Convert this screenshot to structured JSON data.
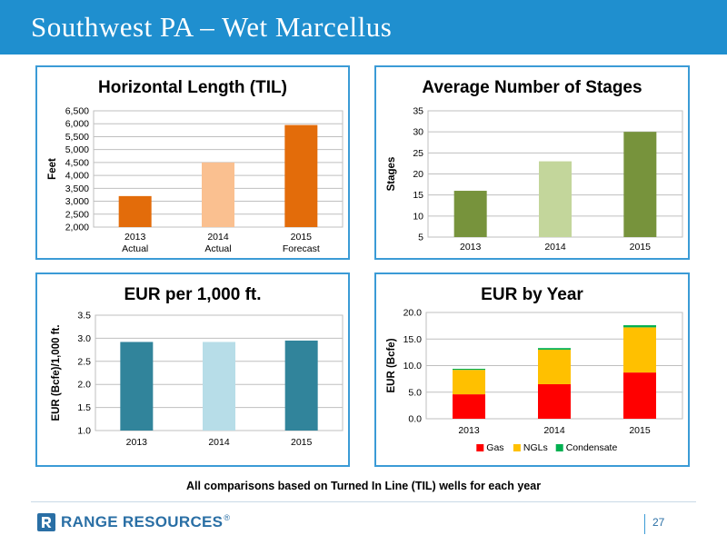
{
  "header": {
    "title": "Southwest PA – Wet Marcellus"
  },
  "footnote": "All comparisons based on Turned In Line (TIL) wells for each year",
  "footer": {
    "brand": "RANGE RESOURCES",
    "brand_mark": "®",
    "page_number": "27"
  },
  "chart_data": [
    {
      "id": "til",
      "type": "bar",
      "title": "Horizontal Length (TIL)",
      "ylabel": "Feet",
      "categories": [
        "2013",
        "2014",
        "2015"
      ],
      "category_sublabels": [
        "Actual",
        "Actual",
        "Forecast"
      ],
      "values": [
        3200,
        4500,
        5950
      ],
      "colors": [
        "#e36c0a",
        "#fac090",
        "#e36c0a"
      ],
      "ylim": [
        2000,
        6500
      ],
      "yticks": [
        2000,
        2500,
        3000,
        3500,
        4000,
        4500,
        5000,
        5500,
        6000,
        6500
      ],
      "tick_format": "thousands",
      "grid": true
    },
    {
      "id": "stages",
      "type": "bar",
      "title": "Average Number of Stages",
      "ylabel": "Stages",
      "categories": [
        "2013",
        "2014",
        "2015"
      ],
      "values": [
        16,
        23,
        30
      ],
      "colors": [
        "#77933c",
        "#c3d69b",
        "#77933c"
      ],
      "ylim": [
        5,
        35
      ],
      "yticks": [
        5,
        10,
        15,
        20,
        25,
        30,
        35
      ],
      "tick_format": "int",
      "grid": true
    },
    {
      "id": "eur1000",
      "type": "bar",
      "title": "EUR per 1,000 ft.",
      "ylabel": "EUR (Bcfe)/1,000 ft.",
      "categories": [
        "2013",
        "2014",
        "2015"
      ],
      "values": [
        2.92,
        2.92,
        2.95
      ],
      "colors": [
        "#31849b",
        "#b7dde8",
        "#31849b"
      ],
      "ylim": [
        1.0,
        3.5
      ],
      "yticks": [
        1.0,
        1.5,
        2.0,
        2.5,
        3.0,
        3.5
      ],
      "tick_format": "1dp",
      "grid": true
    },
    {
      "id": "eur_year",
      "type": "bar",
      "stacked": true,
      "title": "EUR by Year",
      "ylabel": "EUR (Bcfe)",
      "categories": [
        "2013",
        "2014",
        "2015"
      ],
      "series": [
        {
          "name": "Gas",
          "values": [
            4.6,
            6.5,
            8.7
          ],
          "color": "#ff0000"
        },
        {
          "name": "NGLs",
          "values": [
            4.6,
            6.5,
            8.5
          ],
          "color": "#ffc000"
        },
        {
          "name": "Condensate",
          "values": [
            0.2,
            0.3,
            0.4
          ],
          "color": "#00b050"
        }
      ],
      "ylim": [
        0,
        20
      ],
      "yticks": [
        0,
        5,
        10,
        15,
        20
      ],
      "tick_format": "1dp",
      "legend": "bottom",
      "grid": true
    }
  ]
}
